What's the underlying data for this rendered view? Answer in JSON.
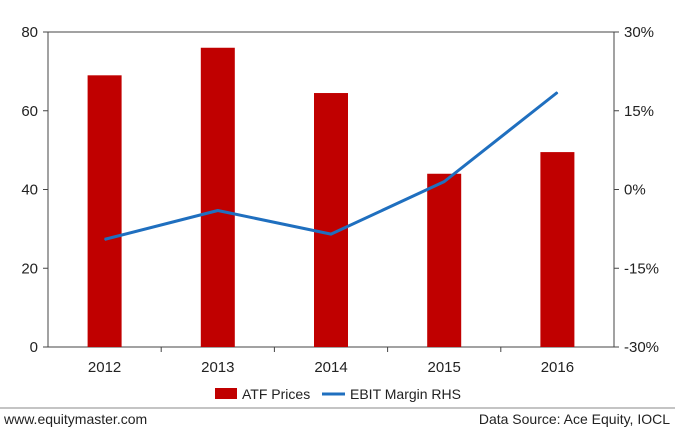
{
  "chart_data": {
    "type": "bar",
    "categories": [
      "2012",
      "2013",
      "2014",
      "2015",
      "2016"
    ],
    "series": [
      {
        "name": "ATF Prices",
        "kind": "bar",
        "axis": "left",
        "color": "#c00000",
        "values": [
          69,
          76,
          64.5,
          44,
          49.5
        ]
      },
      {
        "name": "EBIT Margin RHS",
        "kind": "line",
        "axis": "right",
        "color": "#1f6fbf",
        "values": [
          -9.5,
          -4,
          -8.5,
          1.5,
          18.5
        ]
      }
    ],
    "y_left": {
      "min": 0,
      "max": 80,
      "ticks": [
        "0",
        "20",
        "40",
        "60",
        "80"
      ]
    },
    "y_right": {
      "min": -30,
      "max": 30,
      "ticks": [
        "-30%",
        "-15%",
        "0%",
        "15%",
        "30%"
      ]
    },
    "grid": false,
    "legend_position": "bottom"
  },
  "footer": {
    "left": "www.equitymaster.com",
    "right": "Data Source: Ace Equity, IOCL"
  },
  "colors": {
    "bar": "#c00000",
    "line": "#1f6fbf",
    "frame": "#444444",
    "footer_rule": "#888888"
  }
}
